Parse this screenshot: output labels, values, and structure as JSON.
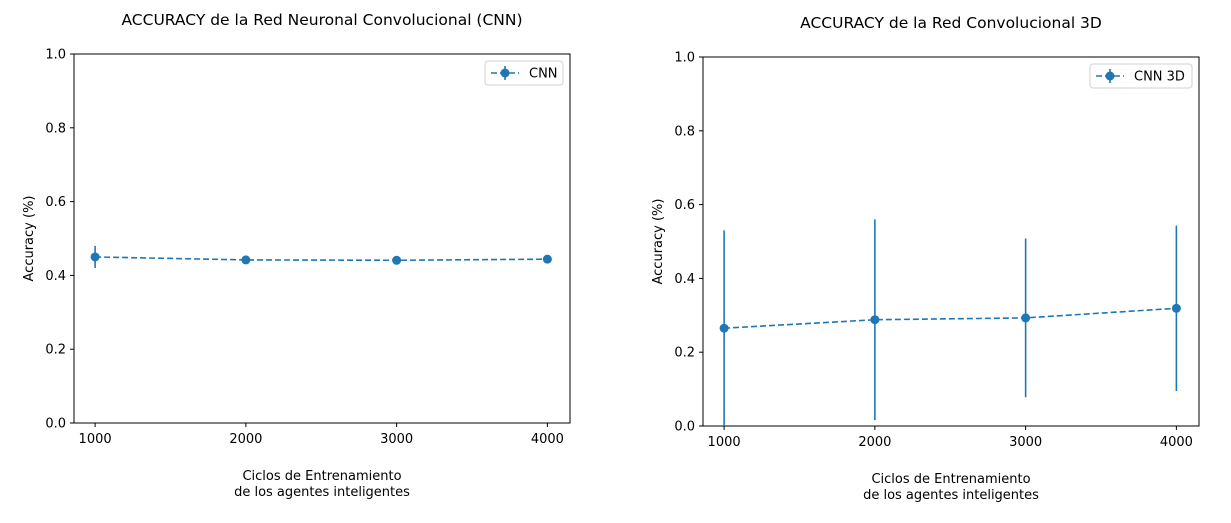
{
  "chart_data": [
    {
      "type": "line",
      "title": "ACCURACY de la Red Neuronal Convolucional (CNN)",
      "xlabel_line1": "Ciclos de Entrenamiento",
      "xlabel_line2": "de los agentes inteligentes",
      "ylabel": "Accuracy (%)",
      "x": [
        1000,
        2000,
        3000,
        4000
      ],
      "x_ticks": [
        "1000",
        "2000",
        "3000",
        "4000"
      ],
      "xlim": [
        860,
        4150
      ],
      "ylim": [
        0,
        1
      ],
      "y_ticks": [
        "0.0",
        "0.2",
        "0.4",
        "0.6",
        "0.8",
        "1.0"
      ],
      "grid": false,
      "legend_position": "top-right",
      "series": [
        {
          "name": "CNN",
          "color": "#1f77b4",
          "values": [
            0.45,
            0.442,
            0.441,
            0.444
          ],
          "error": [
            0.03,
            0.003,
            0.003,
            0.003
          ]
        }
      ]
    },
    {
      "type": "line",
      "title": "ACCURACY de la Red Convolucional 3D",
      "xlabel_line1": "Ciclos de Entrenamiento",
      "xlabel_line2": "de los agentes inteligentes",
      "ylabel": "Accuracy (%)",
      "x": [
        1000,
        2000,
        3000,
        4000
      ],
      "x_ticks": [
        "1000",
        "2000",
        "3000",
        "4000"
      ],
      "xlim": [
        860,
        4150
      ],
      "ylim": [
        0,
        1
      ],
      "y_ticks": [
        "0.0",
        "0.2",
        "0.4",
        "0.6",
        "0.8",
        "1.0"
      ],
      "grid": false,
      "legend_position": "top-right",
      "series": [
        {
          "name": "CNN 3D",
          "color": "#1f77b4",
          "values": [
            0.265,
            0.288,
            0.293,
            0.319
          ],
          "error": [
            0.265,
            0.272,
            0.215,
            0.224
          ]
        }
      ]
    }
  ]
}
